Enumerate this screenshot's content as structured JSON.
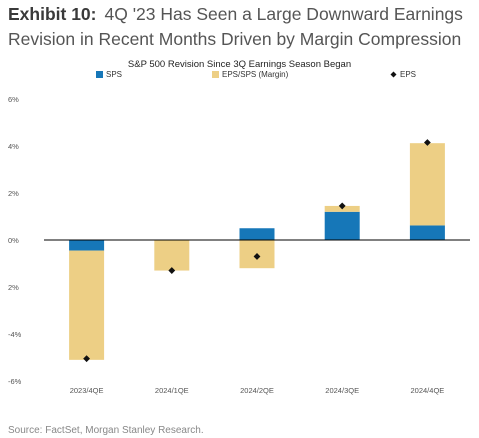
{
  "header": {
    "label": "Exhibit 10:",
    "title": "4Q '23 Has Seen a Large Downward Earnings Revision in Recent Months Driven by Margin Compression"
  },
  "source": "Source: FactSet, Morgan Stanley Research.",
  "chart_data": {
    "type": "bar",
    "stacked": true,
    "title": "S&P 500 Revision Since 3Q Earnings Season Began",
    "categories": [
      "2023/4QE",
      "2024/1QE",
      "2024/2QE",
      "2024/3QE",
      "2024/4QE"
    ],
    "series": [
      {
        "name": "SPS",
        "kind": "bar",
        "color": "#1677b8",
        "values": [
          -0.45,
          0.0,
          0.5,
          1.2,
          0.62
        ]
      },
      {
        "name": "EPS/SPS (Margin)",
        "kind": "bar",
        "color": "#edcf85",
        "values": [
          -4.65,
          -1.3,
          -1.2,
          0.25,
          3.5
        ]
      },
      {
        "name": "EPS",
        "kind": "marker",
        "color": "#111111",
        "values": [
          -5.05,
          -1.3,
          -0.7,
          1.45,
          4.15
        ]
      }
    ],
    "y_ticks": [
      "6%",
      "4%",
      "2%",
      "0%",
      "2%",
      "-4%",
      "-6%"
    ],
    "y_tick_values": [
      6,
      4,
      2,
      0,
      -2,
      -4,
      -6
    ],
    "ylim": [
      -6,
      6
    ],
    "grid": false,
    "legend_position": "top"
  }
}
